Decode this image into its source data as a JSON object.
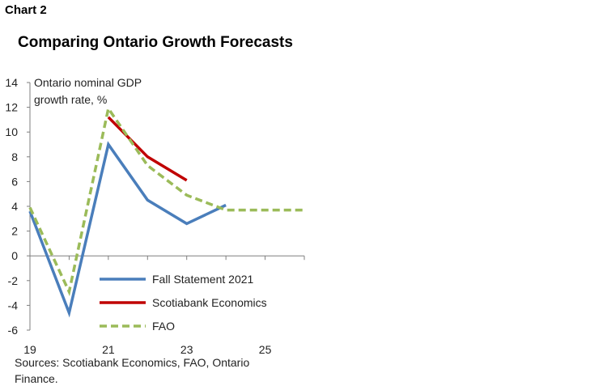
{
  "header": {
    "chart_number": "Chart 2",
    "title": "Comparing Ontario Growth Forecasts"
  },
  "footer": {
    "source": "Sources: Scotiabank Economics, FAO, Ontario Finance."
  },
  "chart_data": {
    "type": "line",
    "ylabel_lines": [
      "Ontario nominal GDP",
      "growth rate, %"
    ],
    "ylim": [
      -6,
      14
    ],
    "yticks": [
      14,
      12,
      10,
      8,
      6,
      4,
      2,
      0,
      -2,
      -4,
      -6
    ],
    "x_range": [
      2019,
      2026
    ],
    "xticks": [
      {
        "value": 2019,
        "label": "19"
      },
      {
        "value": 2021,
        "label": "21"
      },
      {
        "value": 2023,
        "label": "23"
      },
      {
        "value": 2025,
        "label": "25"
      }
    ],
    "legend_position": "bottom-center",
    "series": [
      {
        "name": "Fall Statement 2021",
        "color": "#4a7ebb",
        "style": "solid",
        "points": [
          [
            2019,
            3.6
          ],
          [
            2020,
            -4.6
          ],
          [
            2021,
            9.0
          ],
          [
            2022,
            4.5
          ],
          [
            2023,
            2.6
          ],
          [
            2024,
            4.1
          ]
        ]
      },
      {
        "name": "Scotiabank Economics",
        "color": "#c00000",
        "style": "solid",
        "points": [
          [
            2021,
            11.2
          ],
          [
            2022,
            8.0
          ],
          [
            2023,
            6.1
          ]
        ]
      },
      {
        "name": "FAO",
        "color": "#9bbb59",
        "style": "dashed",
        "points": [
          [
            2019,
            3.9
          ],
          [
            2020,
            -2.9
          ],
          [
            2021,
            11.9
          ],
          [
            2022,
            7.3
          ],
          [
            2023,
            4.9
          ],
          [
            2024,
            3.7
          ],
          [
            2025,
            3.7
          ],
          [
            2026,
            3.7
          ]
        ]
      }
    ]
  }
}
